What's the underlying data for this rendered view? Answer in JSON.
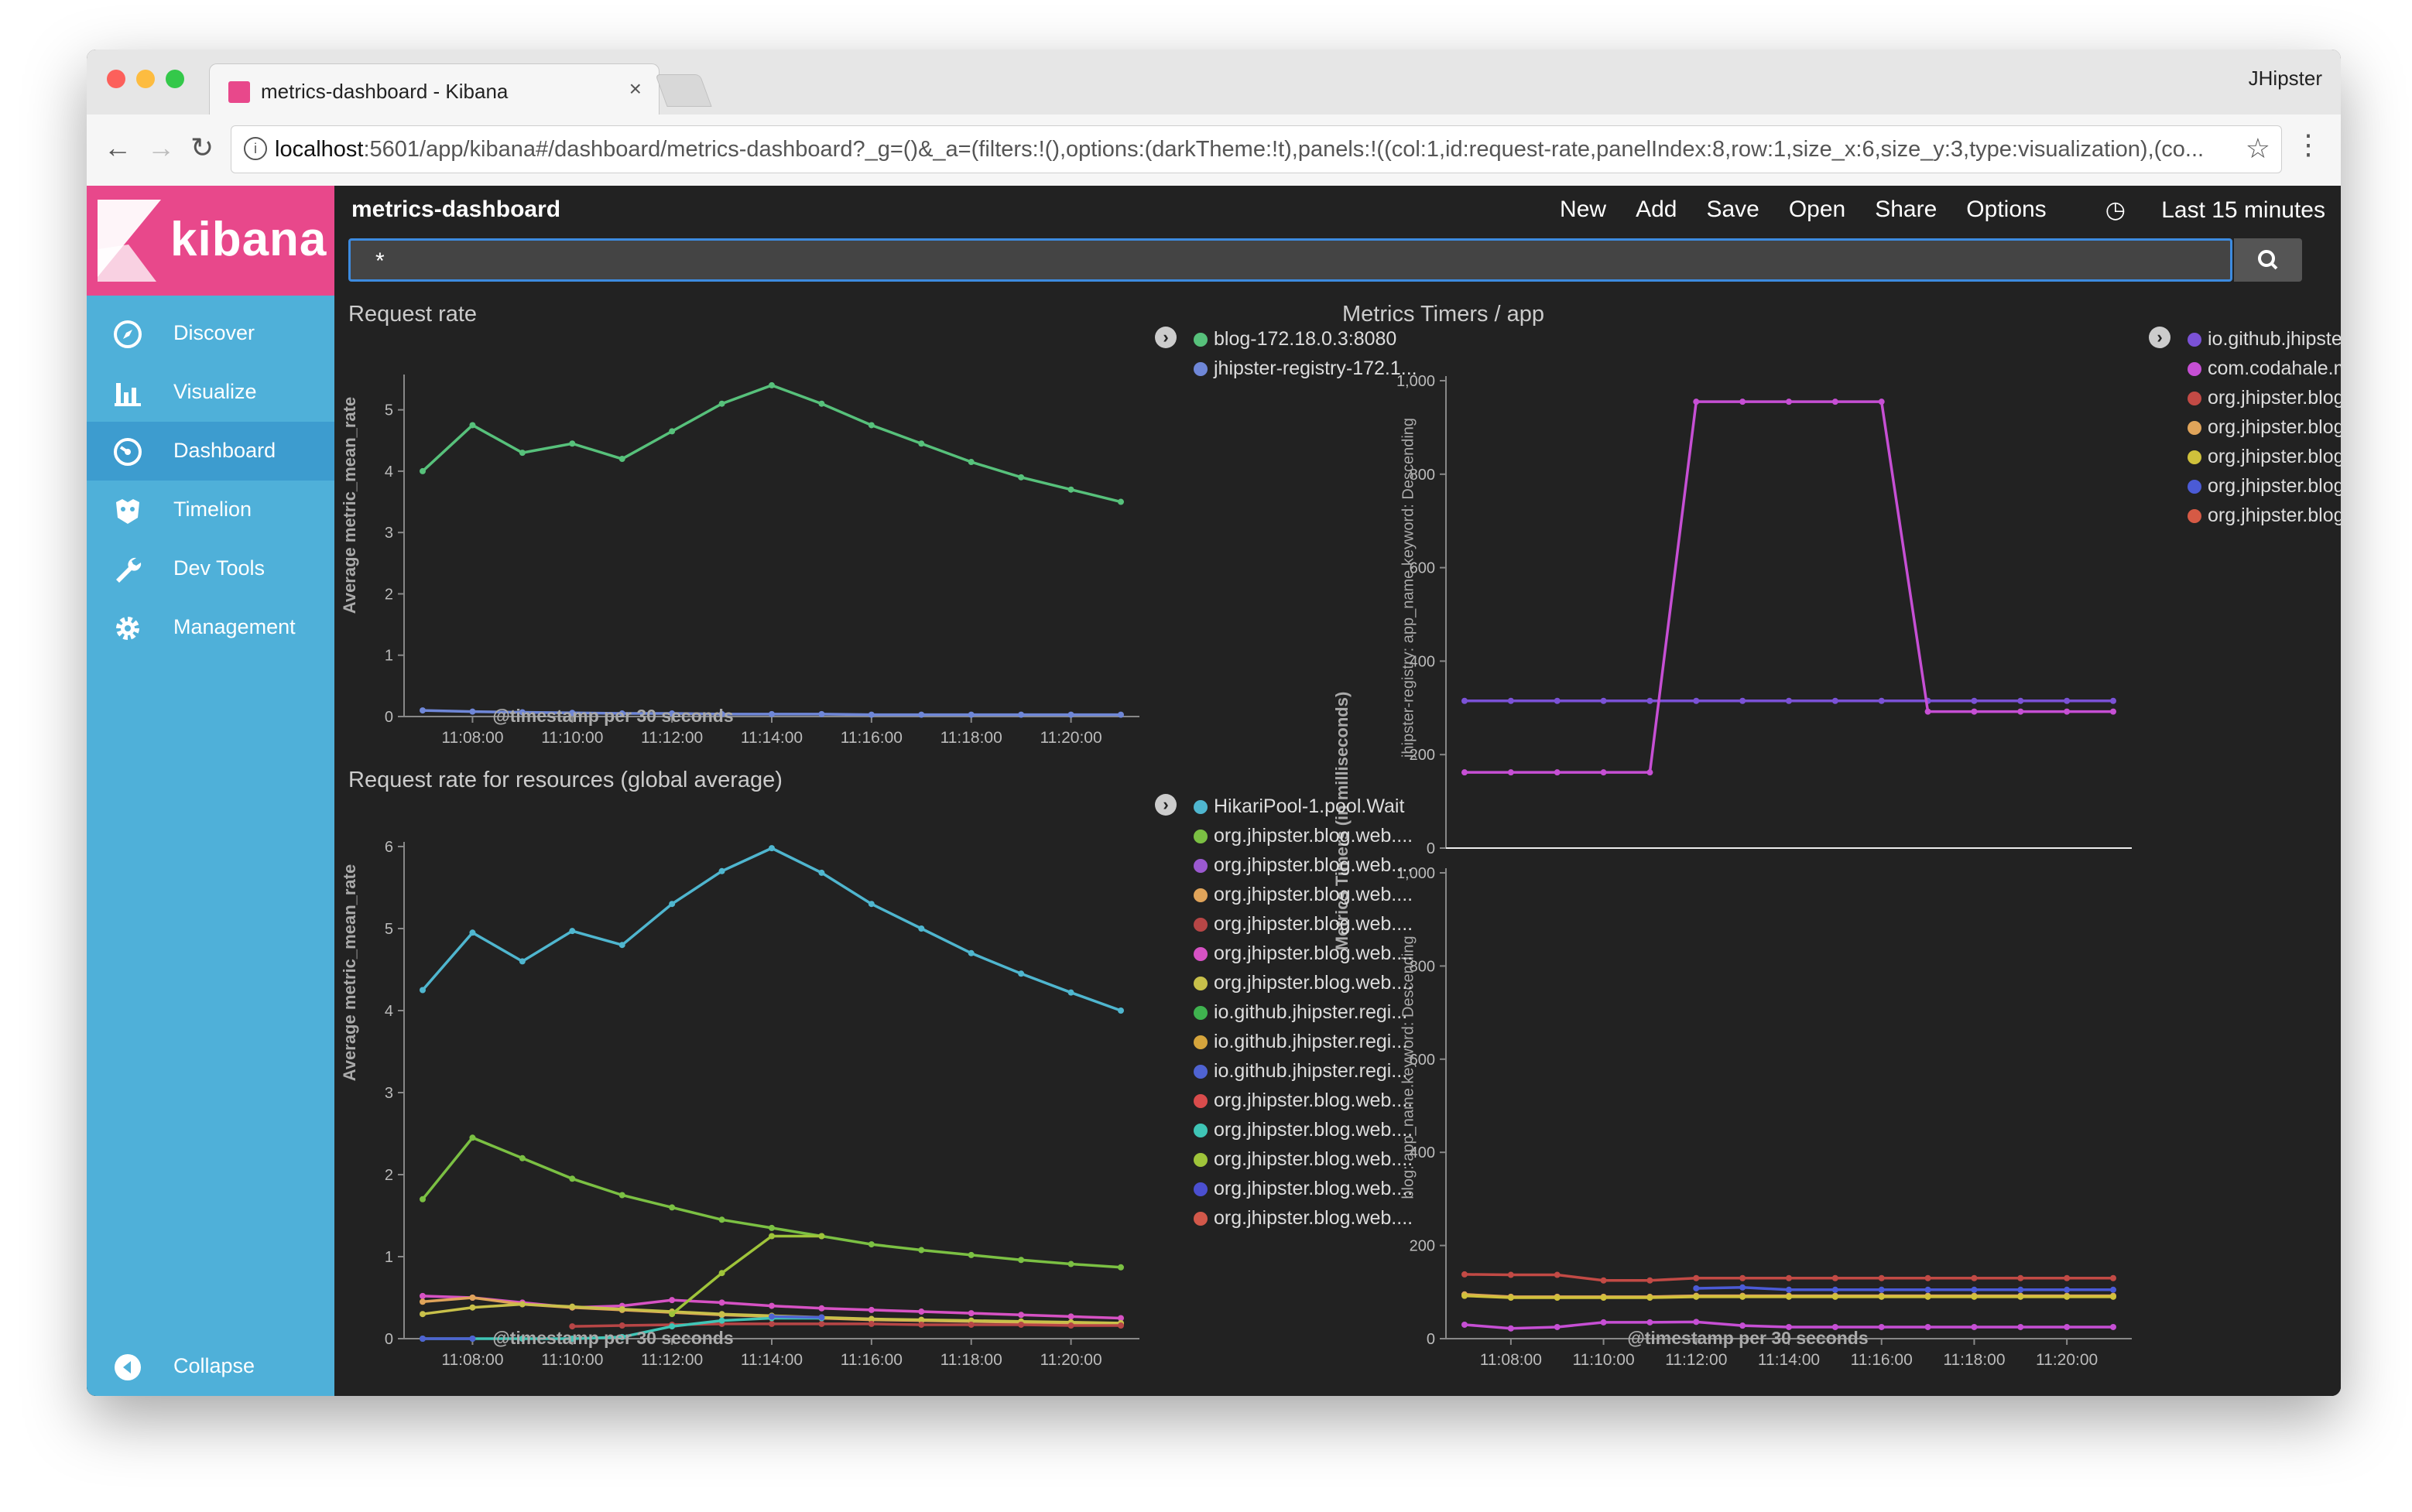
{
  "browser": {
    "tab_title": "metrics-dashboard - Kibana",
    "tab_close": "×",
    "profile": "JHipster",
    "url_host": "localhost",
    "url_rest": ":5601/app/kibana#/dashboard/metrics-dashboard?_g=()&_a=(filters:!(),options:(darkTheme:!t),panels:!((col:1,id:request-rate,panelIndex:8,row:1,size_x:6,size_y:3,type:visualization),(co...",
    "back": "←",
    "forward": "→",
    "reload": "↻",
    "star": "☆",
    "menu": "⋮",
    "info": "i"
  },
  "sidebar": {
    "logo_text": "kibana",
    "items": [
      {
        "label": "Discover",
        "icon": "compass-icon"
      },
      {
        "label": "Visualize",
        "icon": "bar-chart-icon"
      },
      {
        "label": "Dashboard",
        "icon": "gauge-icon",
        "active": true
      },
      {
        "label": "Timelion",
        "icon": "timelion-icon"
      },
      {
        "label": "Dev Tools",
        "icon": "wrench-icon"
      },
      {
        "label": "Management",
        "icon": "gear-icon"
      }
    ],
    "collapse": "Collapse"
  },
  "topnav": {
    "title": "metrics-dashboard",
    "menu": [
      "New",
      "Add",
      "Save",
      "Open",
      "Share",
      "Options"
    ],
    "time": "Last 15 minutes",
    "query": "*"
  },
  "panels": {
    "request_rate": {
      "title": "Request rate",
      "ylabel": "Average metric_mean_rate",
      "xlabel": "@timestamp per 30 seconds",
      "legend": [
        {
          "label": "blog-172.18.0.3:8080",
          "color": "#57c17b"
        },
        {
          "label": "jhipster-registry-172.1...",
          "color": "#6f87d8"
        }
      ]
    },
    "resources": {
      "title": "Request rate for resources (global average)",
      "ylabel": "Average metric_mean_rate",
      "xlabel": "@timestamp per 30 seconds",
      "legend": [
        {
          "label": "HikariPool-1.pool.Wait",
          "color": "#4fb6cf"
        },
        {
          "label": "org.jhipster.blog.web....",
          "color": "#7bc043"
        },
        {
          "label": "org.jhipster.blog.web....",
          "color": "#9b59d0"
        },
        {
          "label": "org.jhipster.blog.web....",
          "color": "#e0a45a"
        },
        {
          "label": "org.jhipster.blog.web....",
          "color": "#b74646"
        },
        {
          "label": "org.jhipster.blog.web....",
          "color": "#d652c4"
        },
        {
          "label": "org.jhipster.blog.web....",
          "color": "#c8c04a"
        },
        {
          "label": "io.github.jhipster.regi...",
          "color": "#3fb34f"
        },
        {
          "label": "io.github.jhipster.regi...",
          "color": "#d6a53c"
        },
        {
          "label": "io.github.jhipster.regi...",
          "color": "#4f63d2"
        },
        {
          "label": "org.jhipster.blog.web....",
          "color": "#d94c4c"
        },
        {
          "label": "org.jhipster.blog.web....",
          "color": "#3fc5b6"
        },
        {
          "label": "org.jhipster.blog.web....",
          "color": "#9fc43a"
        },
        {
          "label": "org.jhipster.blog.web....",
          "color": "#4b4fd0"
        },
        {
          "label": "org.jhipster.blog.web....",
          "color": "#d2584a"
        }
      ]
    },
    "timers": {
      "title": "Metrics Timers / app",
      "ylabel": "Metrics Timers (in milliseconds)",
      "sub_ylabel_top": "jhipster-registry: app_name.keyword: Descending",
      "sub_ylabel_bottom": "blog: app_name.keyword: Descending",
      "xlabel": "@timestamp per 30 seconds",
      "legend": [
        {
          "label": "io.github.jhipster.regi...",
          "color": "#7b52d6"
        },
        {
          "label": "com.codahale.metrics...",
          "color": "#c64fd4"
        },
        {
          "label": "org.jhipster.blog.web....",
          "color": "#c24a45"
        },
        {
          "label": "org.jhipster.blog.web....",
          "color": "#e0a45a"
        },
        {
          "label": "org.jhipster.blog.web....",
          "color": "#d0c13b"
        },
        {
          "label": "org.jhipster.blog.web....",
          "color": "#4b5bd6"
        },
        {
          "label": "org.jhipster.blog.web....",
          "color": "#d65a45"
        }
      ]
    }
  },
  "chart_data": [
    {
      "type": "line",
      "title": "Request rate",
      "xlabel": "@timestamp per 30 seconds",
      "ylabel": "Average metric_mean_rate",
      "x_ticks": [
        "11:08:00",
        "11:10:00",
        "11:12:00",
        "11:14:00",
        "11:16:00",
        "11:18:00",
        "11:20:00"
      ],
      "y_ticks": [
        0,
        1,
        2,
        3,
        4,
        5
      ],
      "ylim": [
        0,
        5.5
      ],
      "x": [
        "11:07:00",
        "11:08:00",
        "11:09:00",
        "11:10:00",
        "11:11:00",
        "11:12:00",
        "11:13:00",
        "11:14:00",
        "11:15:00",
        "11:16:00",
        "11:17:00",
        "11:18:00",
        "11:19:00",
        "11:20:00",
        "11:21:00"
      ],
      "series": [
        {
          "name": "blog-172.18.0.3:8080",
          "color": "#57c17b",
          "values": [
            4.0,
            4.75,
            4.3,
            4.45,
            4.2,
            4.65,
            5.1,
            5.4,
            5.1,
            4.75,
            4.45,
            4.15,
            3.9,
            3.7,
            3.5
          ]
        },
        {
          "name": "jhipster-registry-172.1...",
          "color": "#6f87d8",
          "values": [
            0.1,
            0.08,
            0.07,
            0.06,
            0.05,
            0.05,
            0.04,
            0.04,
            0.04,
            0.03,
            0.03,
            0.03,
            0.03,
            0.03,
            0.03
          ]
        }
      ]
    },
    {
      "type": "line",
      "title": "Request rate for resources (global average)",
      "xlabel": "@timestamp per 30 seconds",
      "ylabel": "Average metric_mean_rate",
      "x_ticks": [
        "11:08:00",
        "11:10:00",
        "11:12:00",
        "11:14:00",
        "11:16:00",
        "11:18:00",
        "11:20:00"
      ],
      "y_ticks": [
        0,
        1,
        2,
        3,
        4,
        5,
        6
      ],
      "ylim": [
        0,
        6
      ],
      "x": [
        "11:07:00",
        "11:08:00",
        "11:09:00",
        "11:10:00",
        "11:11:00",
        "11:12:00",
        "11:13:00",
        "11:14:00",
        "11:15:00",
        "11:16:00",
        "11:17:00",
        "11:18:00",
        "11:19:00",
        "11:20:00",
        "11:21:00"
      ],
      "series": [
        {
          "name": "HikariPool-1.pool.Wait",
          "color": "#4fb6cf",
          "values": [
            4.25,
            4.95,
            4.6,
            4.97,
            4.8,
            5.3,
            5.7,
            5.98,
            5.68,
            5.3,
            5.0,
            4.7,
            4.45,
            4.22,
            4.0
          ]
        },
        {
          "name": "org.jhipster.blog.web....",
          "color": "#7bc043",
          "values": [
            1.7,
            2.45,
            2.2,
            1.95,
            1.75,
            1.6,
            1.45,
            1.35,
            1.25,
            1.15,
            1.08,
            1.02,
            0.96,
            0.91,
            0.87
          ]
        },
        {
          "name": "org.jhipster.blog.web....",
          "color": "#d652c4",
          "values": [
            0.52,
            0.5,
            0.44,
            0.38,
            0.4,
            0.47,
            0.44,
            0.4,
            0.37,
            0.35,
            0.33,
            0.31,
            0.29,
            0.27,
            0.25
          ]
        },
        {
          "name": "org.jhipster.blog.web....",
          "color": "#e0a45a",
          "values": [
            0.45,
            0.5,
            0.42,
            0.38,
            0.35,
            0.32,
            0.29,
            0.27,
            0.25,
            0.23,
            0.22,
            0.21,
            0.2,
            0.19,
            0.18
          ]
        },
        {
          "name": "org.jhipster.blog.web....",
          "color": "#c8c04a",
          "values": [
            0.3,
            0.38,
            0.42,
            0.39,
            0.36,
            0.33,
            0.3,
            0.28,
            0.26,
            0.24,
            0.23,
            0.22,
            0.21,
            0.2,
            0.19
          ]
        },
        {
          "name": "org.jhipster.blog.web....",
          "color": "#9fc43a",
          "values": [
            null,
            null,
            null,
            null,
            null,
            0.3,
            0.8,
            1.25,
            1.25,
            null,
            null,
            null,
            null,
            null,
            null
          ]
        },
        {
          "name": "org.jhipster.blog.web....",
          "color": "#b74646",
          "values": [
            null,
            null,
            null,
            0.15,
            0.16,
            0.17,
            0.18,
            0.18,
            0.18,
            0.18,
            0.17,
            0.17,
            0.17,
            0.16,
            0.16
          ]
        },
        {
          "name": "io.github.jhipster.regi...",
          "color": "#3fc5b6",
          "values": [
            0.0,
            0.0,
            0.0,
            0.0,
            0.02,
            0.15,
            0.22,
            0.25,
            0.25,
            null,
            null,
            null,
            null,
            null,
            null
          ]
        },
        {
          "name": "io.github.jhipster.regi...",
          "color": "#4f63d2",
          "values": [
            0.0,
            0.0,
            null,
            null,
            null,
            null,
            null,
            0.27,
            0.26,
            null,
            null,
            null,
            null,
            null,
            null
          ]
        }
      ]
    },
    {
      "type": "line",
      "title": "Metrics Timers / app",
      "subtitle": "jhipster-registry: app_name.keyword: Descending",
      "ylabel": "Metrics Timers (in milliseconds)",
      "y_ticks": [
        0,
        200,
        400,
        600,
        800,
        "1,000"
      ],
      "ylim": [
        0,
        1000
      ],
      "x": [
        "11:07:00",
        "11:08:00",
        "11:09:00",
        "11:10:00",
        "11:11:00",
        "11:12:00",
        "11:13:00",
        "11:14:00",
        "11:15:00",
        "11:16:00",
        "11:17:00",
        "11:18:00",
        "11:19:00",
        "11:20:00",
        "11:21:00"
      ],
      "series": [
        {
          "name": "io.github.jhipster.regi...",
          "color": "#7b52d6",
          "values": [
            315,
            315,
            315,
            315,
            315,
            315,
            315,
            315,
            315,
            315,
            315,
            315,
            315,
            315,
            315
          ]
        },
        {
          "name": "com.codahale.metrics...",
          "color": "#c64fd4",
          "values": [
            162,
            162,
            162,
            162,
            162,
            955,
            955,
            955,
            955,
            955,
            292,
            292,
            292,
            292,
            292
          ]
        }
      ]
    },
    {
      "type": "line",
      "title": "Metrics Timers / app",
      "subtitle": "blog: app_name.keyword: Descending",
      "xlabel": "@timestamp per 30 seconds",
      "x_ticks": [
        "11:08:00",
        "11:10:00",
        "11:12:00",
        "11:14:00",
        "11:16:00",
        "11:18:00",
        "11:20:00"
      ],
      "y_ticks": [
        0,
        200,
        400,
        600,
        800,
        "1,000"
      ],
      "ylim": [
        0,
        1000
      ],
      "x": [
        "11:07:00",
        "11:08:00",
        "11:09:00",
        "11:10:00",
        "11:11:00",
        "11:12:00",
        "11:13:00",
        "11:14:00",
        "11:15:00",
        "11:16:00",
        "11:17:00",
        "11:18:00",
        "11:19:00",
        "11:20:00",
        "11:21:00"
      ],
      "series": [
        {
          "name": "org.jhipster.blog.web....",
          "color": "#c24a45",
          "values": [
            138,
            137,
            137,
            125,
            125,
            130,
            130,
            130,
            130,
            130,
            130,
            130,
            130,
            130,
            130
          ]
        },
        {
          "name": "org.jhipster.blog.web....",
          "color": "#e0a45a",
          "values": [
            95,
            90,
            90,
            90,
            90,
            92,
            92,
            92,
            92,
            92,
            92,
            92,
            92,
            92,
            92
          ]
        },
        {
          "name": "org.jhipster.blog.web....",
          "color": "#d0c13b",
          "values": [
            92,
            88,
            88,
            88,
            88,
            90,
            90,
            90,
            90,
            90,
            90,
            90,
            90,
            90,
            90
          ]
        },
        {
          "name": "org.jhipster.blog.web....",
          "color": "#4b5bd6",
          "values": [
            null,
            null,
            null,
            null,
            null,
            108,
            110,
            105,
            105,
            105,
            105,
            105,
            105,
            105,
            105
          ]
        },
        {
          "name": "com.codahale.metrics...",
          "color": "#c64fd4",
          "values": [
            30,
            22,
            25,
            35,
            35,
            36,
            28,
            25,
            25,
            25,
            25,
            25,
            25,
            25,
            25
          ]
        }
      ]
    }
  ]
}
